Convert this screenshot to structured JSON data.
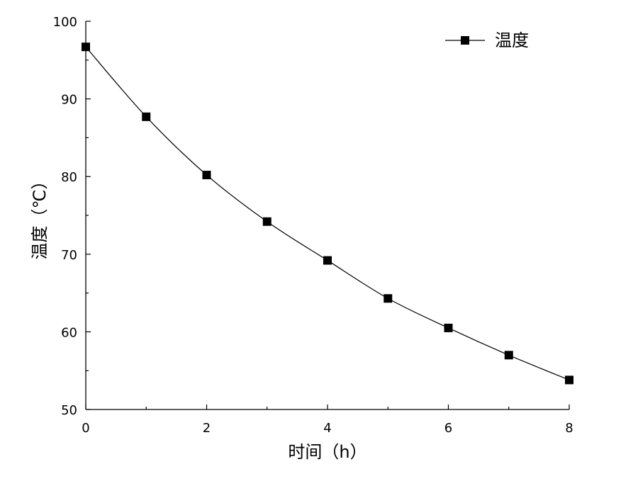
{
  "chart_data": {
    "type": "line",
    "xlabel": "时间（h）",
    "ylabel": "温度（℃）",
    "xlim": [
      0,
      8
    ],
    "ylim": [
      50,
      100
    ],
    "x_ticks": [
      "0",
      "2",
      "4",
      "6",
      "8"
    ],
    "y_ticks": [
      "50",
      "60",
      "70",
      "80",
      "90",
      "100"
    ],
    "grid": false,
    "legend_position": "top-right",
    "series": [
      {
        "name": "温度",
        "marker": "square",
        "color": "#000000",
        "x": [
          0,
          1,
          2,
          3,
          4,
          5,
          6,
          7,
          8
        ],
        "y": [
          96.7,
          87.7,
          80.2,
          74.2,
          69.2,
          64.3,
          60.5,
          57.0,
          53.8
        ]
      }
    ]
  }
}
